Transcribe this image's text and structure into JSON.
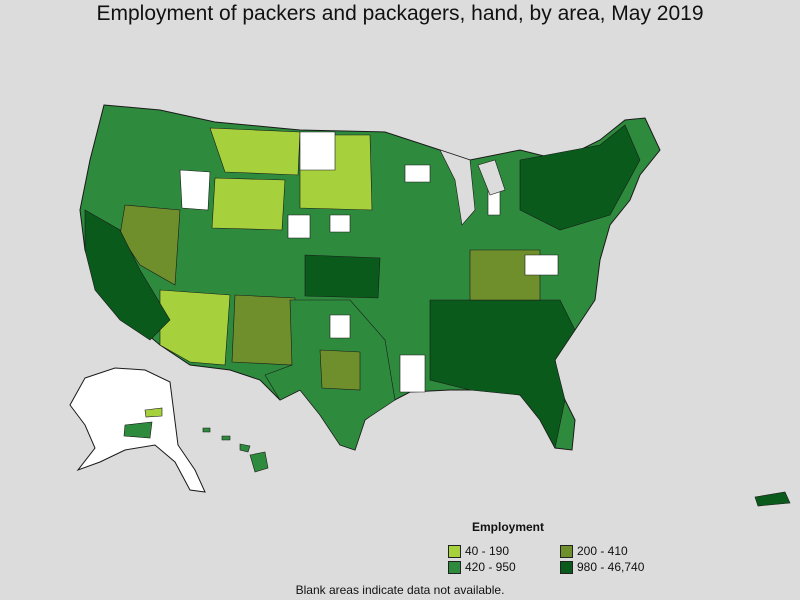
{
  "title": "Employment of packers and packagers, hand, by area, May 2019",
  "legend": {
    "title": "Employment",
    "items": [
      {
        "label": "40 - 190",
        "color": "#a6d13d"
      },
      {
        "label": "200 - 410",
        "color": "#6e8f2b"
      },
      {
        "label": "420 - 950",
        "color": "#2e8b3d"
      },
      {
        "label": "980 - 46,740",
        "color": "#0a5a1c"
      }
    ]
  },
  "footnote": "Blank areas indicate data not available.",
  "colors": {
    "background": "#dcdcdc",
    "no_data": "#ffffff",
    "border": "#1a1a1a"
  }
}
